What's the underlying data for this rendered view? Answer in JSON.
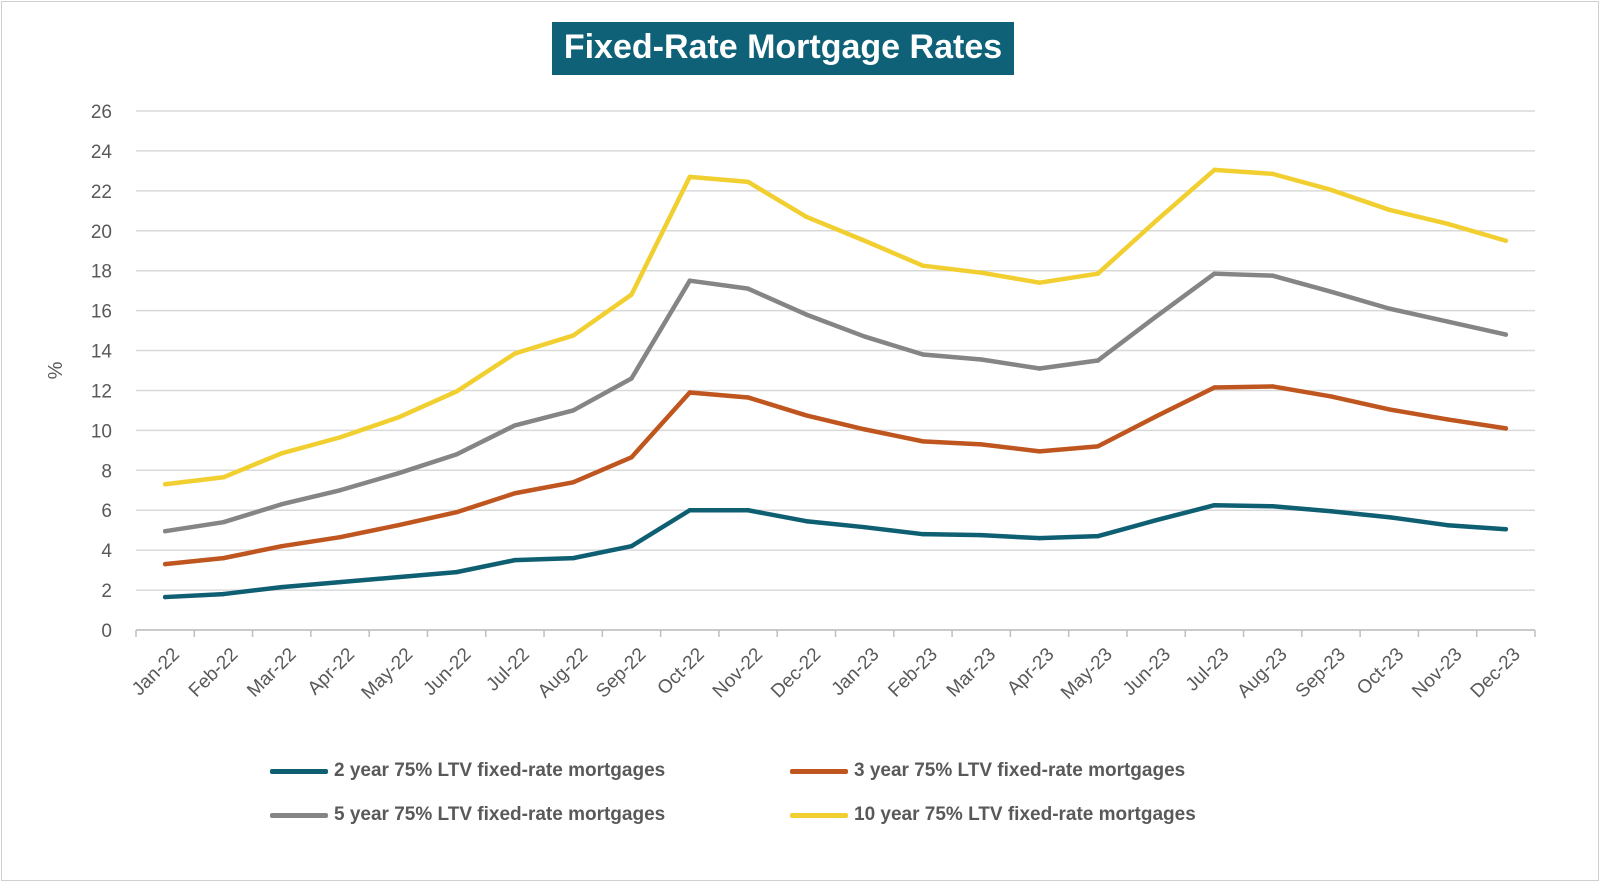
{
  "chart_data": {
    "type": "line",
    "title": "Fixed-Rate Mortgage Rates",
    "xlabel": "",
    "ylabel": "%",
    "ylim": [
      0,
      26
    ],
    "yticks": [
      0,
      2,
      4,
      6,
      8,
      10,
      12,
      14,
      16,
      18,
      20,
      22,
      24,
      26
    ],
    "grid": true,
    "legend_position": "bottom",
    "categories": [
      "Jan-22",
      "Feb-22",
      "Mar-22",
      "Apr-22",
      "May-22",
      "Jun-22",
      "Jul-22",
      "Aug-22",
      "Sep-22",
      "Oct-22",
      "Nov-22",
      "Dec-22",
      "Jan-23",
      "Feb-23",
      "Mar-23",
      "Apr-23",
      "May-23",
      "Jun-23",
      "Jul-23",
      "Aug-23",
      "Sep-23",
      "Oct-23",
      "Nov-23",
      "Dec-23"
    ],
    "series": [
      {
        "name": "2 year 75% LTV fixed-rate mortgages",
        "color": "#0f5f73",
        "values": [
          1.65,
          1.8,
          2.15,
          2.4,
          2.65,
          2.9,
          3.5,
          3.6,
          4.2,
          6.0,
          6.0,
          5.45,
          5.15,
          4.8,
          4.75,
          4.6,
          4.7,
          5.5,
          6.25,
          6.2,
          5.95,
          5.65,
          5.25,
          5.05
        ]
      },
      {
        "name": "3 year 75% LTV fixed-rate mortgages",
        "color": "#c0561f",
        "values": [
          3.3,
          3.6,
          4.2,
          4.65,
          5.25,
          5.9,
          6.85,
          7.4,
          8.65,
          11.9,
          11.65,
          10.75,
          10.05,
          9.45,
          9.3,
          8.95,
          9.2,
          10.7,
          12.15,
          12.2,
          11.7,
          11.05,
          10.55,
          10.1
        ]
      },
      {
        "name": "5 year 75% LTV fixed-rate mortgages",
        "color": "#858585",
        "values": [
          4.95,
          5.4,
          6.3,
          7.0,
          7.85,
          8.8,
          10.25,
          11.0,
          12.6,
          17.5,
          17.1,
          15.8,
          14.7,
          13.8,
          13.55,
          13.1,
          13.5,
          15.7,
          17.85,
          17.75,
          16.95,
          16.1,
          15.45,
          14.8
        ]
      },
      {
        "name": "10 year 75% LTV fixed-rate mortgages",
        "color": "#f2cf30",
        "values": [
          7.3,
          7.65,
          8.85,
          9.65,
          10.65,
          11.95,
          13.85,
          14.75,
          16.8,
          22.7,
          22.45,
          20.7,
          19.5,
          18.25,
          17.9,
          17.4,
          17.85,
          20.5,
          23.05,
          22.85,
          22.05,
          21.05,
          20.35,
          19.5
        ]
      }
    ]
  }
}
